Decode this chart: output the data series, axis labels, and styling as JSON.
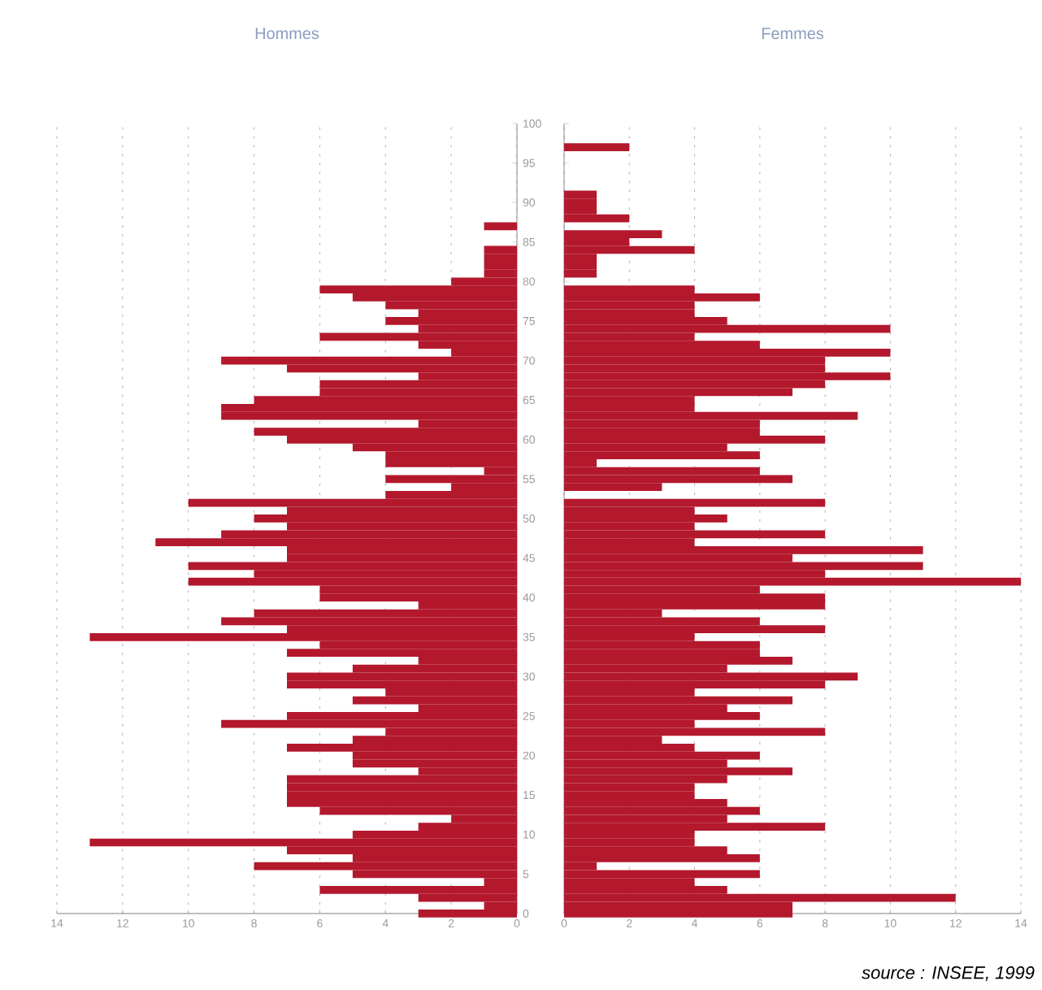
{
  "chart_data": [
    {
      "type": "bar",
      "orientation": "horizontal",
      "title": "Hommes",
      "color": "#b3182c",
      "grid": "x",
      "x": [
        0,
        1,
        2,
        3,
        4,
        5,
        6,
        7,
        8,
        9,
        10,
        11,
        12,
        13,
        14,
        15,
        16,
        17,
        18,
        19,
        20,
        21,
        22,
        23,
        24,
        25,
        26,
        27,
        28,
        29,
        30,
        31,
        32,
        33,
        34,
        35,
        36,
        37,
        38,
        39,
        40,
        41,
        42,
        43,
        44,
        45,
        46,
        47,
        48,
        49,
        50,
        51,
        52,
        53,
        54,
        55,
        56,
        57,
        58,
        59,
        60,
        61,
        62,
        63,
        64,
        65,
        66,
        67,
        68,
        69,
        70,
        71,
        72,
        73,
        74,
        75,
        76,
        77,
        78,
        79,
        80,
        81,
        82,
        83,
        84,
        85,
        86,
        87,
        88,
        89,
        90,
        91,
        92,
        93,
        94,
        95,
        96,
        97
      ],
      "values": [
        3,
        1,
        3,
        6,
        1,
        5,
        8,
        5,
        7,
        13,
        5,
        3,
        2,
        6,
        7,
        7,
        7,
        7,
        3,
        5,
        5,
        7,
        5,
        4,
        9,
        7,
        3,
        5,
        4,
        7,
        7,
        5,
        3,
        7,
        6,
        13,
        7,
        9,
        8,
        3,
        6,
        6,
        10,
        8,
        10,
        7,
        7,
        11,
        9,
        7,
        8,
        7,
        10,
        4,
        2,
        4,
        1,
        4,
        4,
        5,
        7,
        8,
        3,
        9,
        9,
        8,
        6,
        6,
        3,
        7,
        9,
        2,
        3,
        6,
        3,
        4,
        3,
        4,
        5,
        6,
        2,
        1,
        1,
        1,
        1,
        0,
        0,
        1,
        0,
        0,
        0,
        0,
        0,
        0,
        0,
        0,
        0,
        0
      ],
      "xlim": [
        14,
        0
      ],
      "xticks": [
        0,
        2,
        4,
        6,
        8,
        10,
        12,
        14
      ],
      "ylim": [
        0,
        100
      ],
      "yticks": [
        0,
        5,
        10,
        15,
        20,
        25,
        30,
        35,
        40,
        45,
        50,
        55,
        60,
        65,
        70,
        75,
        80,
        85,
        90,
        95,
        100
      ]
    },
    {
      "type": "bar",
      "orientation": "horizontal",
      "title": "Femmes",
      "color": "#b3182c",
      "grid": "x",
      "tick_labels": "x",
      "x": [
        0,
        1,
        2,
        3,
        4,
        5,
        6,
        7,
        8,
        9,
        10,
        11,
        12,
        13,
        14,
        15,
        16,
        17,
        18,
        19,
        20,
        21,
        22,
        23,
        24,
        25,
        26,
        27,
        28,
        29,
        30,
        31,
        32,
        33,
        34,
        35,
        36,
        37,
        38,
        39,
        40,
        41,
        42,
        43,
        44,
        45,
        46,
        47,
        48,
        49,
        50,
        51,
        52,
        53,
        54,
        55,
        56,
        57,
        58,
        59,
        60,
        61,
        62,
        63,
        64,
        65,
        66,
        67,
        68,
        69,
        70,
        71,
        72,
        73,
        74,
        75,
        76,
        77,
        78,
        79,
        80,
        81,
        82,
        83,
        84,
        85,
        86,
        87,
        88,
        89,
        90,
        91,
        92,
        93,
        94,
        95,
        96,
        97
      ],
      "values": [
        7,
        7,
        12,
        5,
        4,
        6,
        1,
        6,
        5,
        4,
        4,
        8,
        5,
        6,
        5,
        4,
        4,
        5,
        7,
        5,
        6,
        4,
        3,
        8,
        4,
        6,
        5,
        7,
        4,
        8,
        9,
        5,
        7,
        6,
        6,
        4,
        8,
        6,
        3,
        8,
        8,
        6,
        14,
        8,
        11,
        7,
        11,
        4,
        8,
        4,
        5,
        4,
        8,
        0,
        3,
        7,
        6,
        1,
        6,
        5,
        8,
        6,
        6,
        9,
        4,
        4,
        7,
        8,
        10,
        8,
        8,
        10,
        6,
        4,
        10,
        5,
        4,
        4,
        6,
        4,
        0,
        1,
        1,
        1,
        4,
        2,
        3,
        0,
        2,
        1,
        1,
        1,
        0,
        0,
        0,
        0,
        0,
        2
      ],
      "xlim": [
        0,
        14
      ],
      "xticks": [
        0,
        2,
        4,
        6,
        8,
        10,
        12,
        14
      ],
      "ylim": [
        0,
        100
      ],
      "yticks": [
        0,
        5,
        10,
        15,
        20,
        25,
        30,
        35,
        40,
        45,
        50,
        55,
        60,
        65,
        70,
        75,
        80,
        85,
        90,
        95,
        100
      ],
      "annotations": [
        "source : INSEE, 1999"
      ]
    }
  ]
}
